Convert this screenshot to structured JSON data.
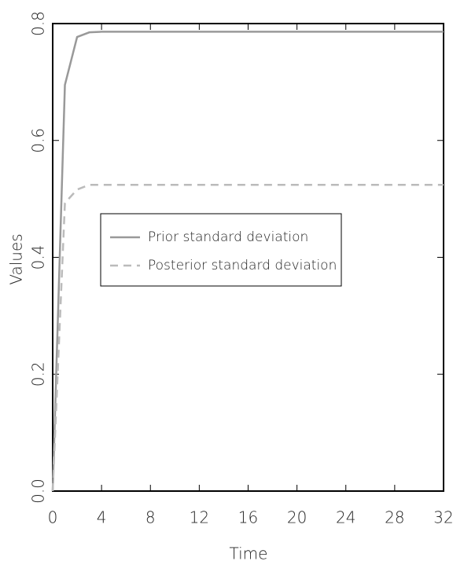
{
  "chart_data": {
    "type": "line",
    "x_label": "Time",
    "y_label": "Values",
    "x": [
      0,
      1,
      2,
      3,
      4,
      5,
      6,
      7,
      8,
      9,
      10,
      11,
      12,
      13,
      14,
      15,
      16,
      17,
      18,
      19,
      20,
      21,
      22,
      23,
      24,
      25,
      26,
      27,
      28,
      29,
      30,
      31,
      32
    ],
    "series": [
      {
        "name": "Prior standard deviation",
        "color": "#999999",
        "dash": "solid",
        "values": [
          0,
          0.695,
          0.777,
          0.785,
          0.786,
          0.786,
          0.786,
          0.786,
          0.786,
          0.786,
          0.786,
          0.786,
          0.786,
          0.786,
          0.786,
          0.786,
          0.786,
          0.786,
          0.786,
          0.786,
          0.786,
          0.786,
          0.786,
          0.786,
          0.786,
          0.786,
          0.786,
          0.786,
          0.786,
          0.786,
          0.786,
          0.786,
          0.786
        ]
      },
      {
        "name": "Posterior standard deviation",
        "color": "#bbbbbb",
        "dash": "dashed",
        "values": [
          0,
          0.493,
          0.516,
          0.524,
          0.524,
          0.524,
          0.524,
          0.524,
          0.524,
          0.524,
          0.524,
          0.524,
          0.524,
          0.524,
          0.524,
          0.524,
          0.524,
          0.524,
          0.524,
          0.524,
          0.524,
          0.524,
          0.524,
          0.524,
          0.524,
          0.524,
          0.524,
          0.524,
          0.524,
          0.524,
          0.524,
          0.524,
          0.524
        ]
      }
    ],
    "xlim": [
      0,
      32
    ],
    "xticks": [
      0,
      4,
      8,
      12,
      16,
      20,
      24,
      28,
      32
    ],
    "ylim": [
      0,
      0.8
    ],
    "yticks": [
      {
        "value": 0,
        "label": "0.0"
      },
      0.2,
      0.4,
      0.6,
      0.8
    ]
  }
}
